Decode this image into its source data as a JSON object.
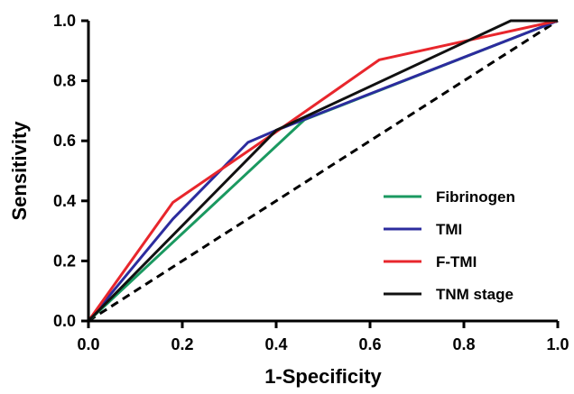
{
  "chart_data": {
    "type": "line",
    "title": "",
    "xlabel": "1-Specificity",
    "ylabel": "Sensitivity",
    "xlim": [
      0.0,
      1.0
    ],
    "ylim": [
      0.0,
      1.0
    ],
    "x_ticks": [
      "0.0",
      "0.2",
      "0.4",
      "0.6",
      "0.8",
      "1.0"
    ],
    "y_ticks": [
      "0.0",
      "0.2",
      "0.4",
      "0.6",
      "0.8",
      "1.0"
    ],
    "grid": false,
    "legend_position": "bottom-right",
    "reference_line": {
      "style": "dashed",
      "color": "#000000",
      "x": [
        0.0,
        1.0
      ],
      "y": [
        0.0,
        1.0
      ]
    },
    "series": [
      {
        "name": "Fibrinogen",
        "color": "#1a9960",
        "x": [
          0.0,
          0.46,
          1.0
        ],
        "y": [
          0.0,
          0.67,
          1.0
        ]
      },
      {
        "name": "TMI",
        "color": "#2c2c9e",
        "x": [
          0.0,
          0.18,
          0.34,
          0.4,
          1.0
        ],
        "y": [
          0.0,
          0.34,
          0.595,
          0.635,
          1.0
        ]
      },
      {
        "name": "F-TMI",
        "color": "#e8262c",
        "x": [
          0.0,
          0.18,
          0.4,
          0.62,
          1.0
        ],
        "y": [
          0.0,
          0.395,
          0.63,
          0.87,
          1.0
        ]
      },
      {
        "name": "TNM stage",
        "color": "#111111",
        "x": [
          0.0,
          0.4,
          0.9,
          1.0
        ],
        "y": [
          0.0,
          0.635,
          1.0,
          1.0
        ]
      }
    ]
  }
}
